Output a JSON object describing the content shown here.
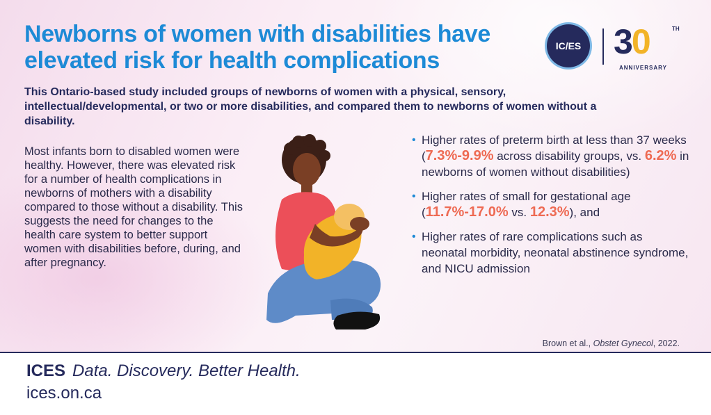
{
  "header": {
    "title": "Newborns of women with disabilities have elevated risk for health complications",
    "logo": {
      "circle_text": "IC/ES",
      "number_3": "3",
      "number_0": "0",
      "superscript": "TH",
      "anniversary": "ANNIVERSARY"
    }
  },
  "intro": "This Ontario-based study included groups of newborns of women with a physical, sensory, intellectual/developmental, or two or more disabilities, and compared them to newborns of women without a disability.",
  "body_text": "Most infants born to disabled women were healthy. However, there was elevated risk for a number of health complications in newborns of mothers with a disability compared to those without a disability. This suggests the need for changes to the health care system to better support women with disabilities before, during, and after pregnancy.",
  "bullets": [
    {
      "pre": "Higher rates of preterm birth at less than 37 weeks (",
      "hl1": "7.3%-9.9%",
      "mid": " across disability groups, vs. ",
      "hl2": "6.2%",
      "post": " in newborns of women without disabilities)"
    },
    {
      "pre": "Higher rates of small for gestational age (",
      "hl1": "11.7%-17.0%",
      "mid": " vs. ",
      "hl2": "12.3%",
      "post": "), and"
    },
    {
      "text": "Higher rates of rare complications such as neonatal morbidity, neonatal abstinence syndrome, and NICU admission"
    }
  ],
  "citation": {
    "authors": "Brown et al., ",
    "journal": "Obstet Gynecol",
    "year": ", 2022."
  },
  "footer": {
    "brand": "ICES",
    "tagline": "Data. Discovery. Better Health.",
    "url": "ices.on.ca"
  },
  "colors": {
    "title_blue": "#1d8ad6",
    "navy": "#252a5c",
    "highlight": "#ee6a53",
    "gold": "#f2b328"
  }
}
